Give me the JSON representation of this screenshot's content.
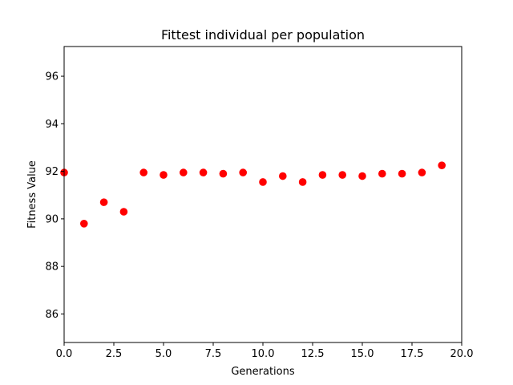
{
  "chart_data": {
    "type": "scatter",
    "title": "Fittest individual per population",
    "xlabel": "Generations",
    "ylabel": "Fitness Value",
    "xlim": [
      0,
      20
    ],
    "ylim": [
      84.8,
      97.25
    ],
    "xticks": [
      0,
      2.5,
      5,
      7.5,
      10,
      12.5,
      15,
      17.5,
      20
    ],
    "xtick_labels": [
      "0.0",
      "2.5",
      "5.0",
      "7.5",
      "10.0",
      "12.5",
      "15.0",
      "17.5",
      "20.0"
    ],
    "yticks": [
      86,
      88,
      90,
      92,
      94,
      96
    ],
    "ytick_labels": [
      "86",
      "88",
      "90",
      "92",
      "94",
      "96"
    ],
    "grid": false,
    "marker_color": "#ff0000",
    "series": [
      {
        "x": [
          0,
          1,
          2,
          3,
          4,
          5,
          6,
          7,
          8,
          9,
          10,
          11,
          12,
          13,
          14,
          15,
          16,
          17,
          18,
          19
        ],
        "y": [
          91.95,
          89.8,
          90.7,
          90.3,
          91.95,
          91.85,
          91.95,
          91.95,
          91.9,
          91.95,
          91.55,
          91.8,
          91.55,
          91.85,
          91.85,
          91.8,
          91.9,
          91.9,
          91.95,
          92.25
        ]
      }
    ]
  }
}
